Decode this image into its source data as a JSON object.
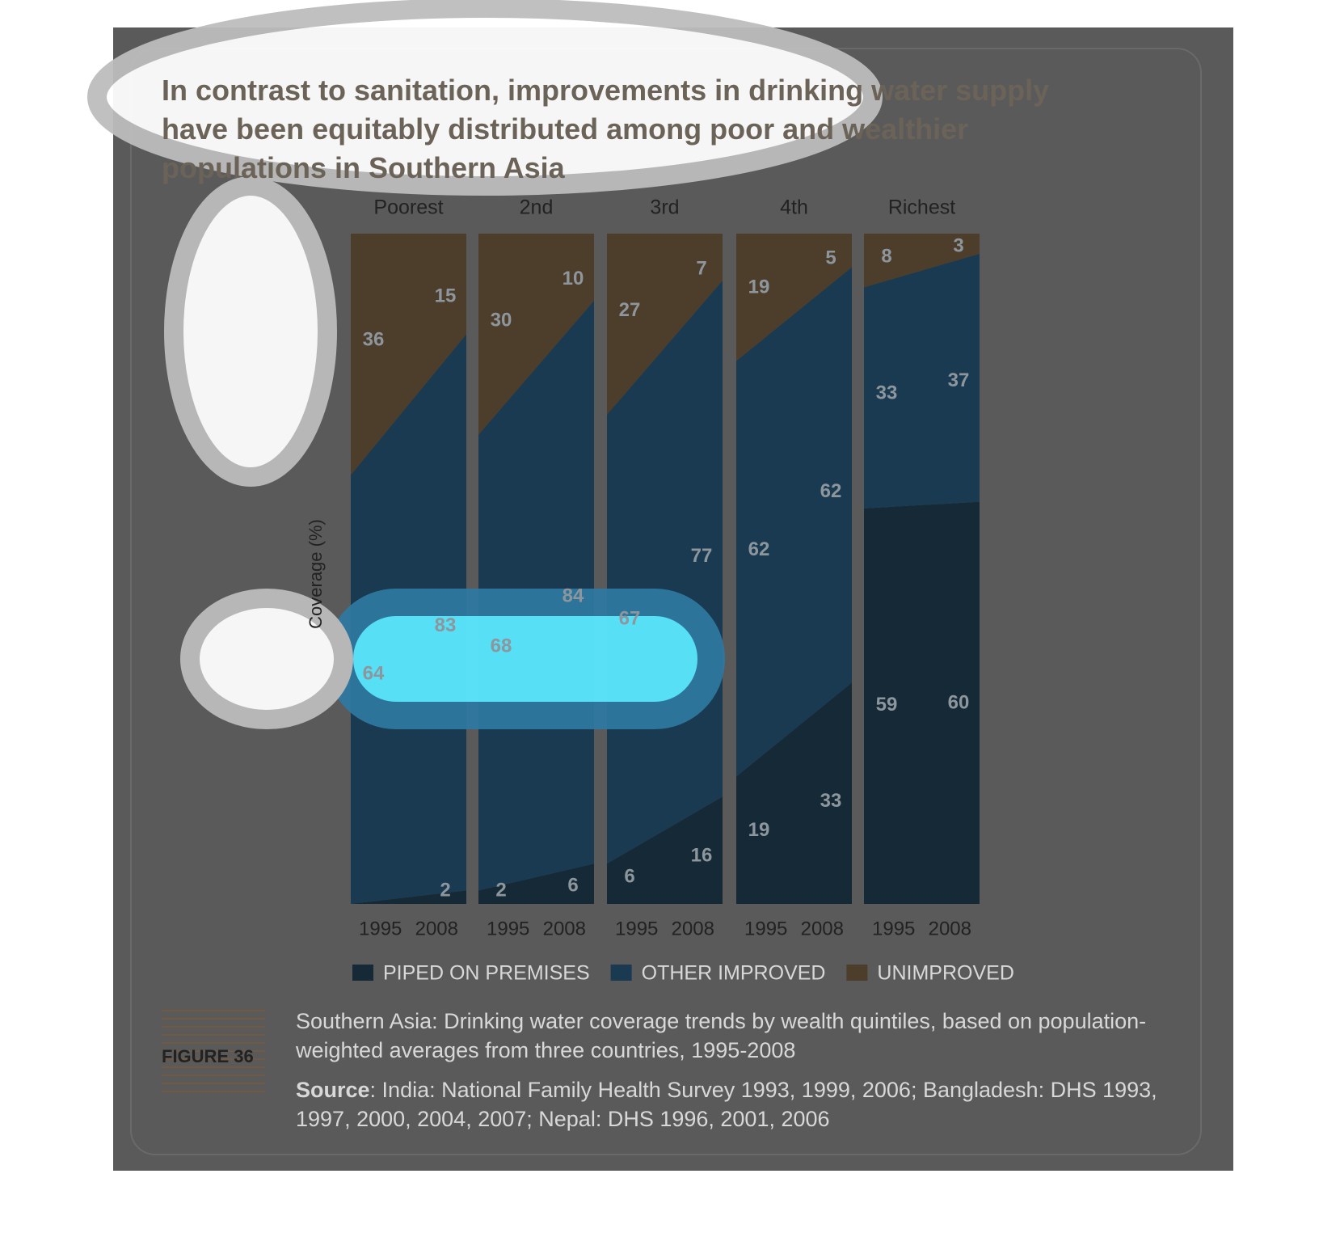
{
  "chart_data": {
    "type": "area",
    "title": "In contrast to sanitation, improvements in drinking water supply have been equitably distributed among poor and wealthier populations in Southern Asia",
    "ylabel": "Coverage (%)",
    "categories": [
      "Poorest",
      "2nd",
      "3rd",
      "4th",
      "Richest"
    ],
    "x": [
      1995,
      2008
    ],
    "ylim": [
      0,
      100
    ],
    "series": [
      {
        "name": "PIPED ON PREMISES",
        "color": "#152936",
        "values": [
          [
            0,
            2
          ],
          [
            2,
            6
          ],
          [
            6,
            16
          ],
          [
            19,
            33
          ],
          [
            59,
            60
          ]
        ]
      },
      {
        "name": "OTHER IMPROVED",
        "color": "#193a50",
        "values": [
          [
            64,
            83
          ],
          [
            68,
            84
          ],
          [
            67,
            77
          ],
          [
            62,
            62
          ],
          [
            33,
            37
          ]
        ]
      },
      {
        "name": "UNIMPROVED",
        "color": "#4d3d2b",
        "values": [
          [
            36,
            15
          ],
          [
            30,
            10
          ],
          [
            27,
            7
          ],
          [
            19,
            5
          ],
          [
            8,
            3
          ]
        ]
      }
    ],
    "figure": "FIGURE 36",
    "caption": "Southern Asia: Drinking water coverage trends by wealth quintiles, based on population-weighted averages from three countries, 1995-2008",
    "source_label": "Source",
    "source": ": India: National Family Health Survey 1993, 1999, 2006; Bangladesh: DHS 1993, 1997, 2000, 2004, 2007; Nepal: DHS 1996, 2001, 2006"
  }
}
